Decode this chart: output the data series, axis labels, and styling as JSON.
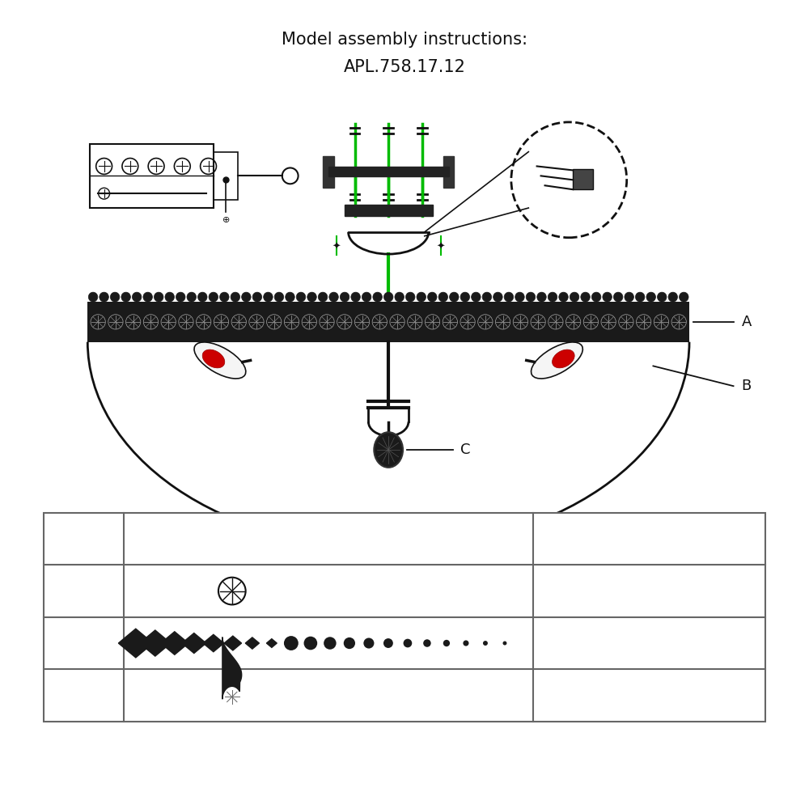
{
  "title_line1": "Model assembly instructions:",
  "title_line2": "APL.758.17.12",
  "bg_color": "#ffffff",
  "title_color": "#1a1a1a",
  "green_color": "#00bb00",
  "red_color": "#cc0000",
  "dark_color": "#111111",
  "label_A": "A",
  "label_B": "B",
  "label_C": "C"
}
